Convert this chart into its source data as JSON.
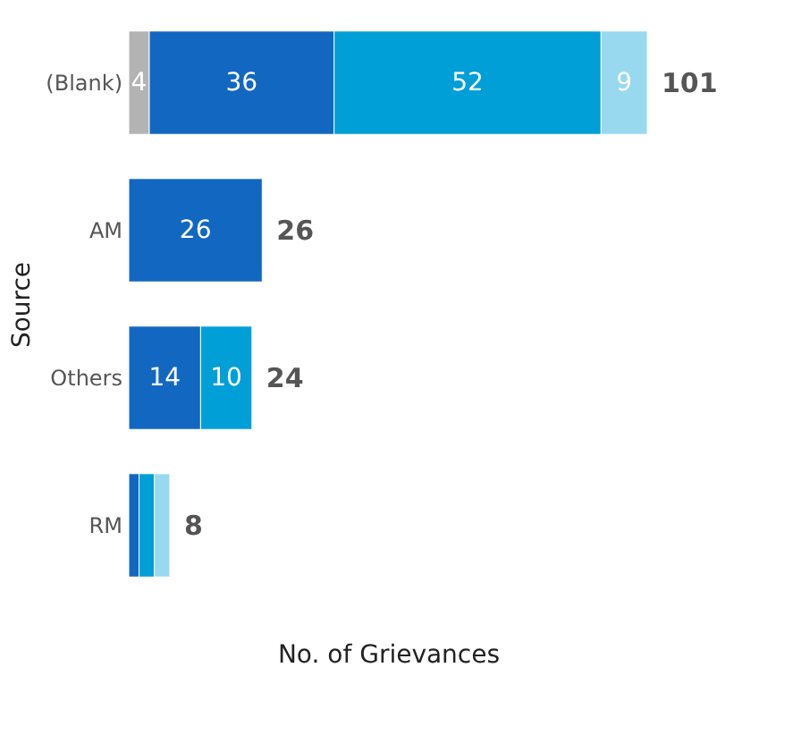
{
  "chart_data": {
    "type": "bar",
    "orientation": "horizontal",
    "stacked": true,
    "xlabel": "No. of Grievances",
    "ylabel": "Source",
    "categories": [
      "(Blank)",
      "AM",
      "Others",
      "RM"
    ],
    "series": [
      {
        "color": "#b3b3b3",
        "values": [
          4,
          null,
          null,
          null
        ],
        "value_labels": [
          "4",
          null,
          null,
          null
        ]
      },
      {
        "color": "#1267c1",
        "values": [
          36,
          26,
          14,
          2
        ],
        "value_labels": [
          "36",
          "26",
          "14",
          null
        ]
      },
      {
        "color": "#009fd8",
        "values": [
          52,
          null,
          10,
          3
        ],
        "value_labels": [
          "52",
          null,
          "10",
          null
        ]
      },
      {
        "color": "#99d9f0",
        "values": [
          9,
          null,
          null,
          3
        ],
        "value_labels": [
          "9",
          null,
          null,
          null
        ]
      }
    ],
    "totals": [
      "101",
      "26",
      "24",
      "8"
    ],
    "tick_labels": "y",
    "grid": false
  }
}
